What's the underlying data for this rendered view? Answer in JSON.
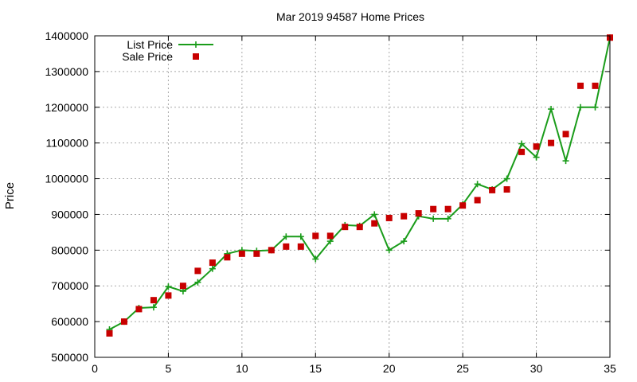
{
  "chart_data": {
    "type": "line",
    "title": "Mar 2019 94587 Home Prices",
    "xlabel": "",
    "ylabel": "Price",
    "xlim": [
      0,
      35
    ],
    "ylim": [
      500000,
      1400000
    ],
    "x_ticks": [
      "0",
      "5",
      "10",
      "15",
      "20",
      "25",
      "30",
      "35"
    ],
    "y_ticks": [
      "500000",
      "600000",
      "700000",
      "800000",
      "900000",
      "1000000",
      "1100000",
      "1200000",
      "1300000",
      "1400000"
    ],
    "grid": true,
    "legend_position": "top-left",
    "series": [
      {
        "name": "List Price",
        "style": "line-with-plus-markers",
        "color": "#1a9c1a",
        "x": [
          1,
          2,
          3,
          4,
          5,
          6,
          7,
          8,
          9,
          10,
          11,
          12,
          13,
          14,
          15,
          16,
          17,
          18,
          19,
          20,
          21,
          22,
          23,
          24,
          25,
          26,
          27,
          28,
          29,
          30,
          31,
          32,
          33,
          34,
          35
        ],
        "values": [
          578000,
          600000,
          638000,
          640000,
          698000,
          685000,
          710000,
          748000,
          790000,
          800000,
          798000,
          800000,
          838000,
          838000,
          775000,
          825000,
          870000,
          868000,
          900000,
          800000,
          825000,
          895000,
          888000,
          888000,
          928000,
          985000,
          970000,
          1000000,
          1098000,
          1060000,
          1195000,
          1050000,
          1200000,
          1200000,
          1395000
        ]
      },
      {
        "name": "Sale Price",
        "style": "square-markers",
        "color": "#c80000",
        "x": [
          1,
          2,
          3,
          4,
          5,
          6,
          7,
          8,
          9,
          10,
          11,
          12,
          13,
          14,
          15,
          16,
          17,
          18,
          19,
          20,
          21,
          22,
          23,
          24,
          25,
          26,
          27,
          28,
          29,
          30,
          31,
          32,
          33,
          34,
          35
        ],
        "values": [
          567000,
          600000,
          635000,
          660000,
          673000,
          700000,
          742000,
          765000,
          780000,
          790000,
          790000,
          800000,
          810000,
          810000,
          840000,
          840000,
          865000,
          865000,
          875000,
          890000,
          895000,
          903000,
          915000,
          915000,
          925000,
          940000,
          968000,
          970000,
          1075000,
          1090000,
          1100000,
          1125000,
          1260000,
          1260000,
          1395000
        ]
      }
    ]
  }
}
